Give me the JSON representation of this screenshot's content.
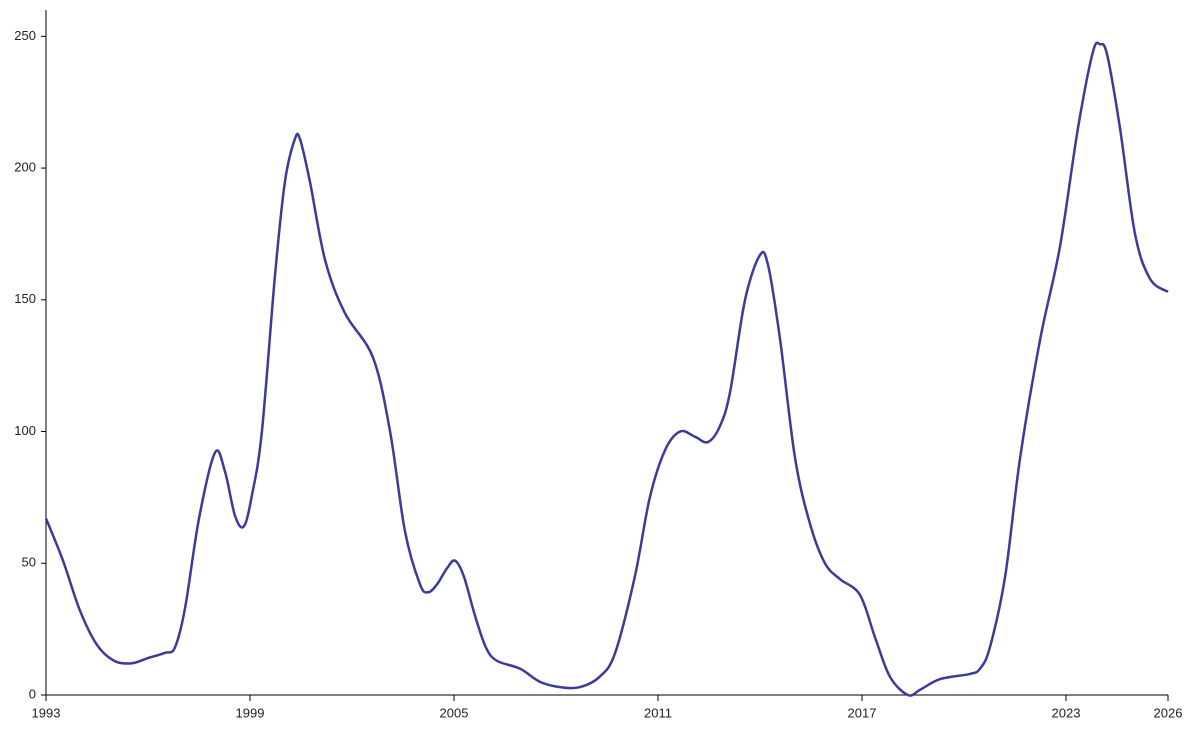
{
  "chart_data": {
    "type": "line",
    "x": [
      1993.0,
      1993.5,
      1994.0,
      1994.5,
      1995.0,
      1995.5,
      1996.0,
      1996.5,
      1996.79,
      1997.09,
      1997.5,
      1997.97,
      1998.26,
      1998.56,
      1998.82,
      1999.06,
      1999.35,
      1999.74,
      2000.03,
      2000.32,
      2000.47,
      2000.76,
      2001.21,
      2001.79,
      2002.62,
      2003.12,
      2003.56,
      2004.0,
      2004.24,
      2004.5,
      2004.79,
      2005.03,
      2005.29,
      2005.62,
      2005.94,
      2006.26,
      2006.94,
      2007.53,
      2008.12,
      2008.71,
      2009.29,
      2009.74,
      2010.32,
      2010.76,
      2011.21,
      2011.65,
      2012.09,
      2012.47,
      2012.82,
      2013.12,
      2013.56,
      2014.0,
      2014.24,
      2014.59,
      2015.03,
      2015.47,
      2015.91,
      2016.35,
      2016.94,
      2017.38,
      2017.82,
      2018.35,
      2018.71,
      2019.29,
      2020.18,
      2020.47,
      2020.76,
      2021.21,
      2021.65,
      2022.24,
      2022.82,
      2023.35,
      2023.79,
      2024.0,
      2024.21,
      2024.59,
      2025.03,
      2025.47,
      2026.0
    ],
    "series": [
      {
        "color": "#3b3b98",
        "values": [
          67,
          51,
          32,
          19,
          13,
          12,
          14,
          16,
          18,
          33,
          67,
          92,
          85,
          68,
          64,
          76,
          100,
          160,
          195,
          211,
          211,
          195,
          165,
          145,
          128,
          100,
          62,
          42,
          39,
          42,
          48,
          51,
          45,
          30,
          18,
          13,
          10,
          5,
          3,
          3,
          7,
          16,
          45,
          75,
          93,
          100,
          98,
          96,
          102,
          115,
          150,
          167,
          163,
          135,
          90,
          65,
          50,
          44,
          38,
          22,
          7,
          0,
          2,
          6,
          8,
          10,
          18,
          45,
          90,
          135,
          170,
          215,
          244,
          247,
          243,
          215,
          175,
          158,
          153
        ]
      }
    ],
    "xlim": [
      1993,
      2026
    ],
    "xticks": [
      1993,
      1999,
      2005,
      2011,
      2017,
      2023,
      2026
    ],
    "ylim": [
      0,
      260
    ],
    "yticks": [
      0,
      50,
      100,
      150,
      200,
      250
    ],
    "grid": false
  }
}
